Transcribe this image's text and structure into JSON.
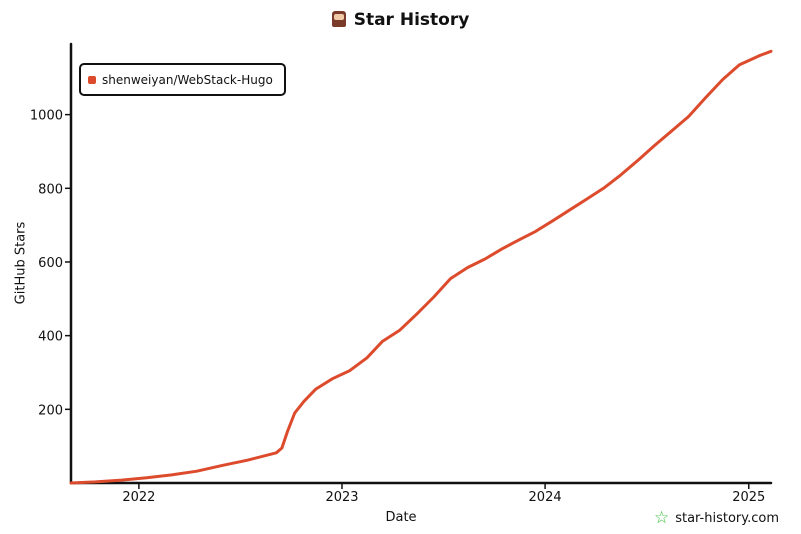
{
  "chart_data": {
    "type": "line",
    "title": "Star History",
    "xlabel": "Date",
    "ylabel": "GitHub Stars",
    "x_ticks": [
      "2022",
      "2023",
      "2024",
      "2025"
    ],
    "y_ticks": [
      200,
      400,
      600,
      800,
      1000
    ],
    "ylim": [
      0,
      1170
    ],
    "legend_position": "top-left",
    "series": [
      {
        "name": "shenweiyan/WebStack-Hugo",
        "color": "#dd4b2d",
        "points": [
          [
            "2021-09-01",
            0
          ],
          [
            "2021-10-15",
            3
          ],
          [
            "2021-12-01",
            8
          ],
          [
            "2022-01-15",
            14
          ],
          [
            "2022-03-01",
            22
          ],
          [
            "2022-04-15",
            32
          ],
          [
            "2022-06-01",
            48
          ],
          [
            "2022-07-15",
            62
          ],
          [
            "2022-09-05",
            82
          ],
          [
            "2022-09-15",
            95
          ],
          [
            "2022-09-25",
            140
          ],
          [
            "2022-10-08",
            190
          ],
          [
            "2022-10-25",
            222
          ],
          [
            "2022-11-15",
            255
          ],
          [
            "2022-12-15",
            283
          ],
          [
            "2023-01-15",
            305
          ],
          [
            "2023-02-15",
            340
          ],
          [
            "2023-03-15",
            385
          ],
          [
            "2023-04-15",
            415
          ],
          [
            "2023-05-15",
            458
          ],
          [
            "2023-06-15",
            505
          ],
          [
            "2023-07-15",
            555
          ],
          [
            "2023-08-15",
            585
          ],
          [
            "2023-09-15",
            608
          ],
          [
            "2023-10-15",
            635
          ],
          [
            "2023-11-15",
            660
          ],
          [
            "2023-12-15",
            683
          ],
          [
            "2024-01-15",
            712
          ],
          [
            "2024-02-15",
            742
          ],
          [
            "2024-03-15",
            770
          ],
          [
            "2024-04-15",
            800
          ],
          [
            "2024-05-15",
            835
          ],
          [
            "2024-06-15",
            875
          ],
          [
            "2024-07-15",
            915
          ],
          [
            "2024-08-15",
            955
          ],
          [
            "2024-09-15",
            995
          ],
          [
            "2024-10-15",
            1045
          ],
          [
            "2024-11-15",
            1095
          ],
          [
            "2024-12-15",
            1135
          ],
          [
            "2025-01-20",
            1160
          ],
          [
            "2025-02-10",
            1172
          ]
        ]
      }
    ]
  },
  "footer": {
    "brand": "star-history.com",
    "icon": "star-icon"
  },
  "title_icon": "mascot-icon"
}
